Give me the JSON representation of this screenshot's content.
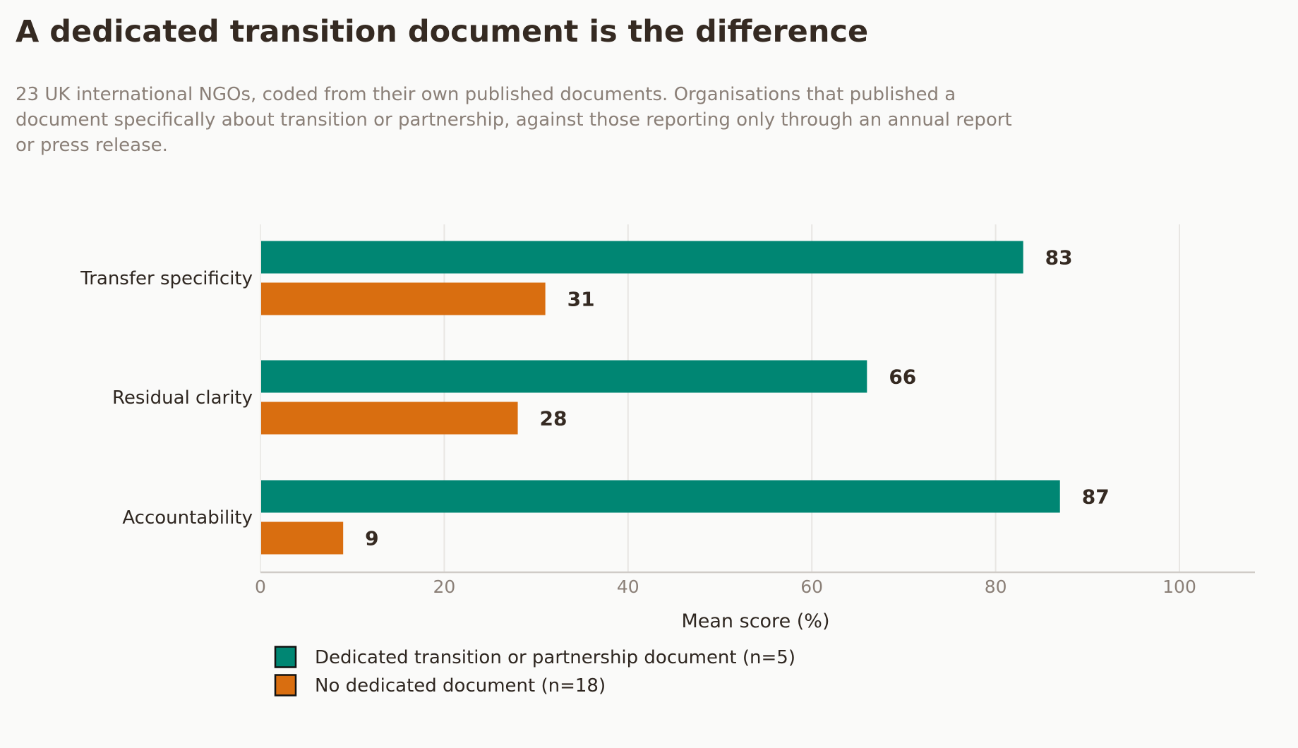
{
  "title": "A dedicated transition document is the difference",
  "subtitle": "23 UK international NGOs, coded from their own published documents. Organisations that published a document specifically about transition or partnership, against those reporting only through an annual report or press release.",
  "colors": {
    "background": "#fafaf9",
    "dedicated": "#008673",
    "no_dedicated": "#d96e10",
    "text_dark": "#352a22",
    "text_muted": "#8a7f77",
    "grid": "#e8e6e3",
    "axis": "#cfcbc7"
  },
  "chart_data": {
    "type": "bar",
    "orientation": "horizontal",
    "categories": [
      "Transfer specificity",
      "Residual clarity",
      "Accountability"
    ],
    "series": [
      {
        "name": "Dedicated transition or partnership document  (n=5)",
        "values": [
          83,
          66,
          87
        ],
        "color": "#008673"
      },
      {
        "name": "No dedicated document  (n=18)",
        "values": [
          31,
          28,
          9
        ],
        "color": "#d96e10"
      }
    ],
    "xlabel": "Mean score  (%)",
    "ylabel": "",
    "xlim": [
      0,
      108
    ],
    "xticks": [
      0,
      20,
      40,
      60,
      80,
      100
    ],
    "grid": "vertical",
    "legend_position": "bottom-left"
  }
}
